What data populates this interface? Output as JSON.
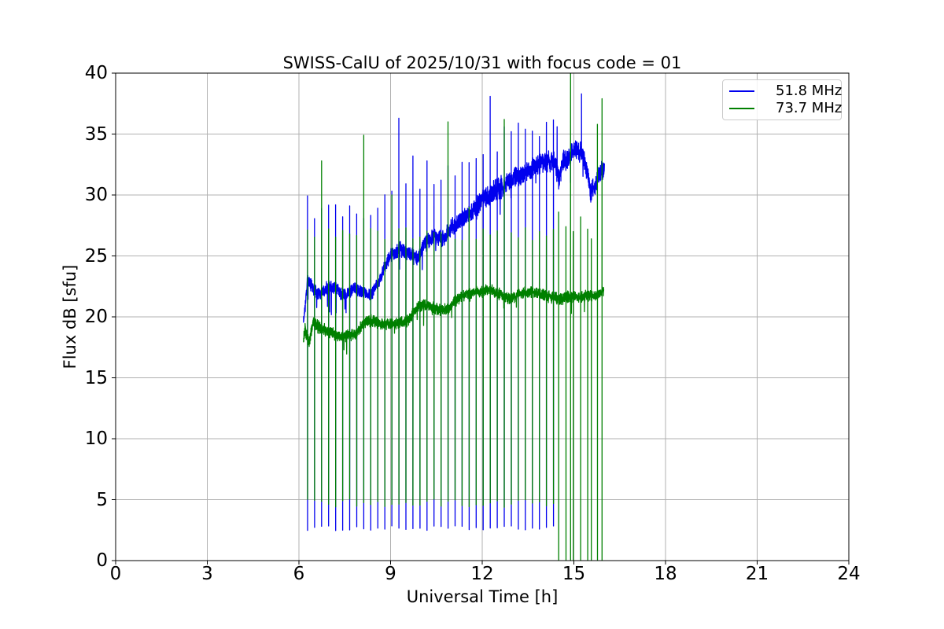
{
  "chart_data": {
    "type": "line",
    "title": "SWISS-CalU of 2025/10/31 with focus code = 01",
    "xlabel": "Universal Time [h]",
    "ylabel": "Flux dB [sfu]",
    "xlim": [
      0,
      24
    ],
    "ylim": [
      0,
      40
    ],
    "xticks": [
      0,
      3,
      6,
      9,
      12,
      15,
      18,
      21,
      24
    ],
    "yticks": [
      0,
      5,
      10,
      15,
      20,
      25,
      30,
      35,
      40
    ],
    "grid": true,
    "grid_color": "#b0b0b0",
    "legend_position": "upper right",
    "series": [
      {
        "name": "51.8 MHz",
        "color": "#0000ee",
        "x_start": 6.15,
        "x_end": 16.0,
        "baseline_points": [
          [
            6.15,
            19.6
          ],
          [
            6.2,
            20.6
          ],
          [
            6.28,
            23.1
          ],
          [
            6.4,
            22.6
          ],
          [
            6.6,
            21.9
          ],
          [
            6.8,
            22.1
          ],
          [
            7.0,
            22.6
          ],
          [
            7.2,
            22.4
          ],
          [
            7.4,
            21.8
          ],
          [
            7.6,
            21.9
          ],
          [
            7.8,
            22.3
          ],
          [
            8.0,
            22.2
          ],
          [
            8.2,
            21.8
          ],
          [
            8.4,
            22.0
          ],
          [
            8.6,
            22.8
          ],
          [
            8.8,
            24.0
          ],
          [
            9.0,
            25.0
          ],
          [
            9.3,
            25.5
          ],
          [
            9.6,
            25.3
          ],
          [
            9.9,
            24.7
          ],
          [
            10.1,
            26.0
          ],
          [
            10.4,
            26.6
          ],
          [
            10.7,
            26.4
          ],
          [
            11.0,
            27.3
          ],
          [
            11.3,
            27.9
          ],
          [
            11.6,
            28.4
          ],
          [
            11.9,
            29.3
          ],
          [
            12.1,
            29.8
          ],
          [
            12.4,
            30.3
          ],
          [
            12.7,
            30.8
          ],
          [
            13.0,
            31.3
          ],
          [
            13.3,
            31.8
          ],
          [
            13.6,
            32.1
          ],
          [
            13.9,
            32.5
          ],
          [
            14.2,
            32.8
          ],
          [
            14.35,
            33.0
          ],
          [
            14.5,
            31.4
          ],
          [
            14.65,
            32.8
          ],
          [
            14.9,
            33.3
          ],
          [
            15.1,
            33.7
          ],
          [
            15.3,
            33.4
          ],
          [
            15.4,
            32.3
          ],
          [
            15.55,
            30.2
          ],
          [
            15.7,
            30.8
          ],
          [
            15.85,
            31.9
          ],
          [
            16.0,
            32.2
          ]
        ],
        "noise_sigma": [
          [
            6.15,
            0.35
          ],
          [
            8.5,
            0.32
          ],
          [
            9.5,
            0.45
          ],
          [
            11.5,
            0.5
          ],
          [
            12.5,
            0.6
          ],
          [
            15.0,
            0.55
          ],
          [
            16.0,
            0.5
          ]
        ],
        "calibration": {
          "start": 6.28,
          "end": 14.33,
          "interval": 0.23,
          "down_level": 2.65,
          "down_jitter": 0.2,
          "up_mode": "offset",
          "up_offset": 6.5,
          "up_ref": 22,
          "up_slope": 0.3,
          "up_jitter": 1.4
        },
        "special_spikes_up": [
          [
            6.74,
            28.9
          ],
          [
            9.27,
            36.3
          ],
          [
            9.73,
            33.2
          ],
          [
            10.19,
            32.8
          ],
          [
            12.26,
            38.1
          ],
          [
            13.18,
            35.9
          ],
          [
            13.41,
            35.4
          ],
          [
            13.87,
            34.8
          ],
          [
            14.45,
            35.6
          ],
          [
            15.25,
            38.3
          ]
        ]
      },
      {
        "name": "73.7 MHz",
        "color": "#008000",
        "x_start": 6.15,
        "x_end": 15.98,
        "baseline_points": [
          [
            6.15,
            18.1
          ],
          [
            6.21,
            18.9
          ],
          [
            6.33,
            17.9
          ],
          [
            6.45,
            19.4
          ],
          [
            6.6,
            19.3
          ],
          [
            6.8,
            19.0
          ],
          [
            7.0,
            18.8
          ],
          [
            7.2,
            18.5
          ],
          [
            7.4,
            18.4
          ],
          [
            7.6,
            18.5
          ],
          [
            7.9,
            18.6
          ],
          [
            8.1,
            19.5
          ],
          [
            8.3,
            19.7
          ],
          [
            8.5,
            19.6
          ],
          [
            8.7,
            19.4
          ],
          [
            9.0,
            19.4
          ],
          [
            9.3,
            19.5
          ],
          [
            9.6,
            19.7
          ],
          [
            9.8,
            20.6
          ],
          [
            10.0,
            21.0
          ],
          [
            10.3,
            20.8
          ],
          [
            10.6,
            20.6
          ],
          [
            10.9,
            20.7
          ],
          [
            11.1,
            21.3
          ],
          [
            11.4,
            21.8
          ],
          [
            11.7,
            22.0
          ],
          [
            12.0,
            22.1
          ],
          [
            12.3,
            22.2
          ],
          [
            12.6,
            21.8
          ],
          [
            12.9,
            21.5
          ],
          [
            13.1,
            21.7
          ],
          [
            13.4,
            22.0
          ],
          [
            13.7,
            22.0
          ],
          [
            14.0,
            21.8
          ],
          [
            14.3,
            21.6
          ],
          [
            14.6,
            21.5
          ],
          [
            14.9,
            21.7
          ],
          [
            15.2,
            21.6
          ],
          [
            15.5,
            21.8
          ],
          [
            15.75,
            21.7
          ],
          [
            15.98,
            22.2
          ]
        ],
        "noise_sigma": [
          [
            6.15,
            0.4
          ],
          [
            7.0,
            0.3
          ],
          [
            16.0,
            0.3
          ]
        ],
        "calibration": {
          "start": 6.28,
          "end": 14.33,
          "interval": 0.23,
          "down_level": 4.7,
          "down_jitter": 0.35,
          "up_mode": "absolute",
          "up_level": 26.8,
          "up_jitter": 1.1
        },
        "special_spikes_up": [
          [
            6.74,
            32.8
          ],
          [
            8.12,
            34.9
          ],
          [
            9.04,
            30.0
          ],
          [
            10.88,
            36.0
          ],
          [
            11.57,
            29.0
          ],
          [
            12.72,
            36.2
          ]
        ],
        "zero_spikes": [
          [
            14.5,
            28.6
          ],
          [
            14.74,
            27.4
          ],
          [
            14.89,
            40.8
          ],
          [
            14.98,
            27.0
          ],
          [
            15.22,
            28.2
          ],
          [
            15.45,
            27.2
          ],
          [
            15.57,
            26.4
          ],
          [
            15.77,
            35.8
          ],
          [
            15.92,
            37.9
          ]
        ]
      }
    ]
  }
}
